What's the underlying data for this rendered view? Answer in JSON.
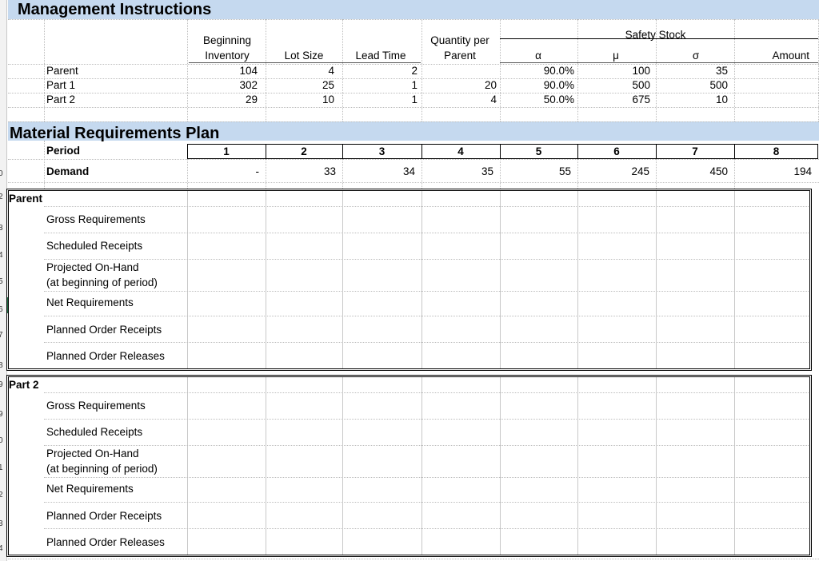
{
  "management": {
    "title": "Management Instructions",
    "headers": {
      "beginning_inventory": [
        "Beginning",
        "Inventory"
      ],
      "lot_size": "Lot Size",
      "lead_time": "Lead Time",
      "qty_per_parent": [
        "Quantity per",
        "Parent"
      ],
      "safety_stock": "Safety Stock",
      "alpha": "α",
      "mu": "μ",
      "sigma": "σ",
      "amount": "Amount"
    },
    "rows": [
      {
        "name": "Parent",
        "beginning_inventory": "104",
        "lot_size": "4",
        "lead_time": "2",
        "qty_per_parent": "",
        "alpha": "90.0%",
        "mu": "100",
        "sigma": "35",
        "amount": ""
      },
      {
        "name": "Part 1",
        "beginning_inventory": "302",
        "lot_size": "25",
        "lead_time": "1",
        "qty_per_parent": "20",
        "alpha": "90.0%",
        "mu": "500",
        "sigma": "500",
        "amount": ""
      },
      {
        "name": "Part 2",
        "beginning_inventory": "29",
        "lot_size": "10",
        "lead_time": "1",
        "qty_per_parent": "4",
        "alpha": "50.0%",
        "mu": "675",
        "sigma": "10",
        "amount": ""
      }
    ]
  },
  "mrp": {
    "title": "Material Requirements Plan",
    "period_label": "Period",
    "periods": [
      "1",
      "2",
      "3",
      "4",
      "5",
      "6",
      "7",
      "8"
    ],
    "demand_label": "Demand",
    "demand": [
      "-",
      "33",
      "34",
      "35",
      "55",
      "245",
      "450",
      "194"
    ],
    "blocks": [
      {
        "name": "Parent",
        "rows": [
          "Gross Requirements",
          "Scheduled Receipts",
          [
            "Projected On-Hand",
            "(at beginning of period)"
          ],
          "Net Requirements",
          "Planned Order Receipts",
          "Planned Order Releases"
        ]
      },
      {
        "name": "Part 2",
        "rows": [
          "Gross Requirements",
          "Scheduled Receipts",
          [
            "Projected On-Hand",
            "(at beginning of period)"
          ],
          "Net Requirements",
          "Planned Order Receipts",
          "Planned Order Releases"
        ]
      }
    ]
  },
  "row_numbers": [
    "0",
    "2",
    "3",
    "4",
    "5",
    "6",
    "7",
    "8",
    "9",
    "9",
    "0",
    "1",
    "2",
    "3",
    "4"
  ]
}
